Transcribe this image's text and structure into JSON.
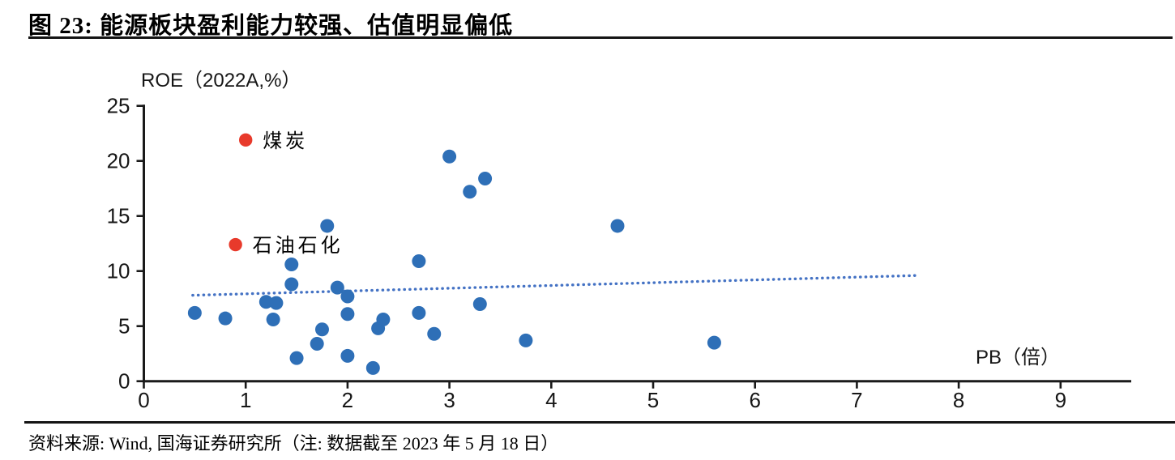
{
  "header": {
    "title": "图 23:  能源板块盈利能力较强、估值明显偏低"
  },
  "footer": {
    "source": "资料来源: Wind, 国海证券研究所（注: 数据截至 2023 年 5 月 18 日）"
  },
  "colors": {
    "axis": "#1a1a1a",
    "blue_point": "#2E6FB7",
    "red_point": "#E83A2B",
    "trend_line": "#4472C4",
    "rule": "#141414"
  },
  "chart_data": {
    "type": "scatter",
    "title": "图 23:  能源板块盈利能力较强、估值明显偏低",
    "xlabel": "PB（倍）",
    "ylabel": "ROE（2022A,%）",
    "xlim": [
      0,
      9
    ],
    "ylim": [
      0,
      25
    ],
    "xticks": [
      0,
      1,
      2,
      3,
      4,
      5,
      6,
      7,
      8,
      9
    ],
    "yticks": [
      0,
      5,
      10,
      15,
      20,
      25
    ],
    "grid": false,
    "legend_position": "none",
    "series": [
      {
        "id": "industry-sectors",
        "color": "#2E6FB7",
        "marker": "circle",
        "points": [
          [
            0.5,
            6.2
          ],
          [
            0.8,
            5.7
          ],
          [
            1.2,
            7.2
          ],
          [
            1.3,
            7.1
          ],
          [
            1.27,
            5.6
          ],
          [
            1.45,
            10.6
          ],
          [
            1.45,
            8.8
          ],
          [
            1.5,
            2.1
          ],
          [
            1.7,
            3.4
          ],
          [
            1.75,
            4.7
          ],
          [
            1.8,
            14.1
          ],
          [
            1.9,
            8.5
          ],
          [
            2.0,
            7.7
          ],
          [
            2.0,
            6.1
          ],
          [
            2.0,
            2.3
          ],
          [
            2.25,
            1.2
          ],
          [
            2.3,
            4.8
          ],
          [
            2.35,
            5.6
          ],
          [
            2.7,
            10.9
          ],
          [
            2.7,
            6.2
          ],
          [
            2.85,
            4.3
          ],
          [
            3.0,
            20.4
          ],
          [
            3.2,
            17.2
          ],
          [
            3.3,
            7.0
          ],
          [
            3.35,
            18.4
          ],
          [
            3.75,
            3.7
          ],
          [
            4.65,
            14.1
          ],
          [
            5.6,
            3.5
          ]
        ]
      },
      {
        "id": "energy-sectors-highlighted",
        "color": "#E83A2B",
        "marker": "circle",
        "labeled_points": [
          {
            "label": "煤炭",
            "x": 1.0,
            "y": 21.9
          },
          {
            "label": "石油石化",
            "x": 0.9,
            "y": 12.4
          }
        ]
      }
    ],
    "trendline": {
      "style": "dotted",
      "color": "#4472C4",
      "from": [
        0.48,
        7.8
      ],
      "to": [
        7.6,
        9.6
      ]
    }
  }
}
